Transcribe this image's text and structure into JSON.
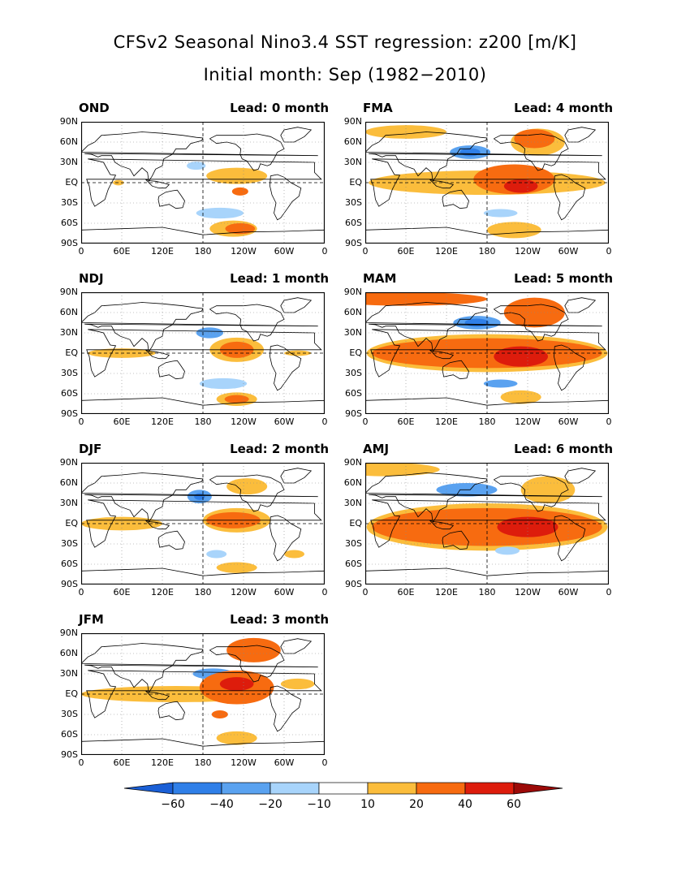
{
  "title": {
    "line1": "CFSv2 Seasonal Nino3.4 SST regression: z200 [m/K]",
    "line2": "Initial month: Sep (1982−2010)"
  },
  "colors": {
    "lt_m60": "#1a5fd6",
    "m60_m40": "#2f7fe8",
    "m40_m20": "#5aa2f0",
    "m20_m10": "#a8d4fb",
    "m10_10": "#ffffff",
    "p10_20": "#fbbd3c",
    "p20_40": "#f76b10",
    "p40_60": "#dd1c0c",
    "gt_60": "#9c0a08",
    "coast": "#000000"
  },
  "chart_data": [
    {
      "type": "heatmap",
      "season": "OND",
      "lead": "Lead: 0 month",
      "blobs": [
        {
          "lon": 170,
          "lat": 25,
          "rlon": 14,
          "rlat": 6,
          "v": -15
        },
        {
          "lon": 230,
          "lat": 10,
          "rlon": 45,
          "rlat": 12,
          "v": 15
        },
        {
          "lon": 235,
          "lat": -13,
          "rlon": 12,
          "rlat": 6,
          "v": 25
        },
        {
          "lon": 205,
          "lat": -45,
          "rlon": 35,
          "rlat": 8,
          "v": -15
        },
        {
          "lon": 225,
          "lat": -68,
          "rlon": 35,
          "rlat": 12,
          "v": 15
        },
        {
          "lon": 235,
          "lat": -68,
          "rlon": 22,
          "rlat": 8,
          "v": 25
        },
        {
          "lon": 55,
          "lat": 0,
          "rlon": 8,
          "rlat": 4,
          "v": 15
        }
      ]
    },
    {
      "type": "heatmap",
      "season": "FMA",
      "lead": "Lead: 4 month",
      "blobs": [
        {
          "lon": 180,
          "lat": 0,
          "rlon": 175,
          "rlat": 18,
          "v": 15
        },
        {
          "lon": 220,
          "lat": 5,
          "rlon": 60,
          "rlat": 22,
          "v": 25
        },
        {
          "lon": 230,
          "lat": -5,
          "rlon": 25,
          "rlat": 10,
          "v": 45
        },
        {
          "lon": 155,
          "lat": 45,
          "rlon": 30,
          "rlat": 10,
          "v": -25
        },
        {
          "lon": 155,
          "lat": 45,
          "rlon": 15,
          "rlat": 6,
          "v": -45
        },
        {
          "lon": 255,
          "lat": 60,
          "rlon": 40,
          "rlat": 20,
          "v": 15
        },
        {
          "lon": 250,
          "lat": 65,
          "rlon": 30,
          "rlat": 14,
          "v": 25
        },
        {
          "lon": 220,
          "lat": -70,
          "rlon": 40,
          "rlat": 12,
          "v": 15
        },
        {
          "lon": 200,
          "lat": -45,
          "rlon": 25,
          "rlat": 6,
          "v": -15
        },
        {
          "lon": 60,
          "lat": 75,
          "rlon": 60,
          "rlat": 10,
          "v": 15
        }
      ]
    },
    {
      "type": "heatmap",
      "season": "NDJ",
      "lead": "Lead: 1 month",
      "blobs": [
        {
          "lon": 60,
          "lat": 0,
          "rlon": 50,
          "rlat": 7,
          "v": 15
        },
        {
          "lon": 230,
          "lat": 5,
          "rlon": 40,
          "rlat": 18,
          "v": 15
        },
        {
          "lon": 230,
          "lat": 5,
          "rlon": 25,
          "rlat": 12,
          "v": 25
        },
        {
          "lon": 190,
          "lat": 30,
          "rlon": 20,
          "rlat": 8,
          "v": -20
        },
        {
          "lon": 210,
          "lat": -45,
          "rlon": 35,
          "rlat": 8,
          "v": -15
        },
        {
          "lon": 230,
          "lat": -68,
          "rlon": 30,
          "rlat": 10,
          "v": 15
        },
        {
          "lon": 230,
          "lat": -68,
          "rlon": 18,
          "rlat": 6,
          "v": 25
        },
        {
          "lon": 320,
          "lat": 0,
          "rlon": 20,
          "rlat": 4,
          "v": 15
        }
      ]
    },
    {
      "type": "heatmap",
      "season": "MAM",
      "lead": "Lead: 5 month",
      "blobs": [
        {
          "lon": 180,
          "lat": 0,
          "rlon": 178,
          "rlat": 28,
          "v": 15
        },
        {
          "lon": 180,
          "lat": 0,
          "rlon": 170,
          "rlat": 22,
          "v": 25
        },
        {
          "lon": 230,
          "lat": -5,
          "rlon": 40,
          "rlat": 15,
          "v": 45
        },
        {
          "lon": 165,
          "lat": 45,
          "rlon": 35,
          "rlat": 10,
          "v": -20
        },
        {
          "lon": 165,
          "lat": 45,
          "rlon": 18,
          "rlat": 6,
          "v": -40
        },
        {
          "lon": 250,
          "lat": 60,
          "rlon": 45,
          "rlat": 22,
          "v": 25
        },
        {
          "lon": 60,
          "lat": 80,
          "rlon": 120,
          "rlat": 10,
          "v": 25
        },
        {
          "lon": 200,
          "lat": -45,
          "rlon": 25,
          "rlat": 6,
          "v": -20
        },
        {
          "lon": 230,
          "lat": -65,
          "rlon": 30,
          "rlat": 10,
          "v": 15
        }
      ]
    },
    {
      "type": "heatmap",
      "season": "DJF",
      "lead": "Lead: 2 month",
      "blobs": [
        {
          "lon": 60,
          "lat": 0,
          "rlon": 60,
          "rlat": 10,
          "v": 15
        },
        {
          "lon": 230,
          "lat": 5,
          "rlon": 50,
          "rlat": 18,
          "v": 15
        },
        {
          "lon": 225,
          "lat": 5,
          "rlon": 40,
          "rlat": 12,
          "v": 25
        },
        {
          "lon": 175,
          "lat": 40,
          "rlon": 18,
          "rlat": 10,
          "v": -20
        },
        {
          "lon": 175,
          "lat": 40,
          "rlon": 8,
          "rlat": 5,
          "v": -40
        },
        {
          "lon": 245,
          "lat": 55,
          "rlon": 30,
          "rlat": 12,
          "v": 15
        },
        {
          "lon": 230,
          "lat": -65,
          "rlon": 30,
          "rlat": 8,
          "v": 15
        },
        {
          "lon": 200,
          "lat": -45,
          "rlon": 15,
          "rlat": 6,
          "v": -15
        },
        {
          "lon": 315,
          "lat": -45,
          "rlon": 15,
          "rlat": 6,
          "v": 15
        }
      ]
    },
    {
      "type": "heatmap",
      "season": "AMJ",
      "lead": "Lead: 6 month",
      "blobs": [
        {
          "lon": 180,
          "lat": -5,
          "rlon": 178,
          "rlat": 35,
          "v": 15
        },
        {
          "lon": 180,
          "lat": -5,
          "rlon": 170,
          "rlat": 28,
          "v": 25
        },
        {
          "lon": 240,
          "lat": -5,
          "rlon": 45,
          "rlat": 15,
          "v": 45
        },
        {
          "lon": 150,
          "lat": 50,
          "rlon": 45,
          "rlat": 10,
          "v": -20
        },
        {
          "lon": 270,
          "lat": 50,
          "rlon": 40,
          "rlat": 20,
          "v": 15
        },
        {
          "lon": 30,
          "lat": 80,
          "rlon": 80,
          "rlat": 10,
          "v": 15
        },
        {
          "lon": 210,
          "lat": -40,
          "rlon": 18,
          "rlat": 6,
          "v": -15
        }
      ]
    },
    {
      "type": "heatmap",
      "season": "JFM",
      "lead": "Lead: 3 month",
      "blobs": [
        {
          "lon": 140,
          "lat": 0,
          "rlon": 140,
          "rlat": 12,
          "v": 15
        },
        {
          "lon": 230,
          "lat": 10,
          "rlon": 55,
          "rlat": 25,
          "v": 25
        },
        {
          "lon": 230,
          "lat": 15,
          "rlon": 25,
          "rlat": 10,
          "v": 45
        },
        {
          "lon": 195,
          "lat": 30,
          "rlon": 30,
          "rlat": 8,
          "v": -20
        },
        {
          "lon": 255,
          "lat": 65,
          "rlon": 40,
          "rlat": 18,
          "v": 25
        },
        {
          "lon": 230,
          "lat": -65,
          "rlon": 30,
          "rlat": 10,
          "v": 15
        },
        {
          "lon": 205,
          "lat": -30,
          "rlon": 12,
          "rlat": 6,
          "v": 25
        },
        {
          "lon": 320,
          "lat": 15,
          "rlon": 25,
          "rlat": 8,
          "v": 15
        }
      ]
    }
  ],
  "axes": {
    "yticks": [
      "90N",
      "60N",
      "30N",
      "EQ",
      "30S",
      "60S",
      "90S"
    ],
    "xticks": [
      "0",
      "60E",
      "120E",
      "180",
      "120W",
      "60W",
      "0"
    ]
  },
  "colorbar": {
    "labels": [
      "−60",
      "−40",
      "−20",
      "−10",
      "10",
      "20",
      "40",
      "60"
    ]
  }
}
